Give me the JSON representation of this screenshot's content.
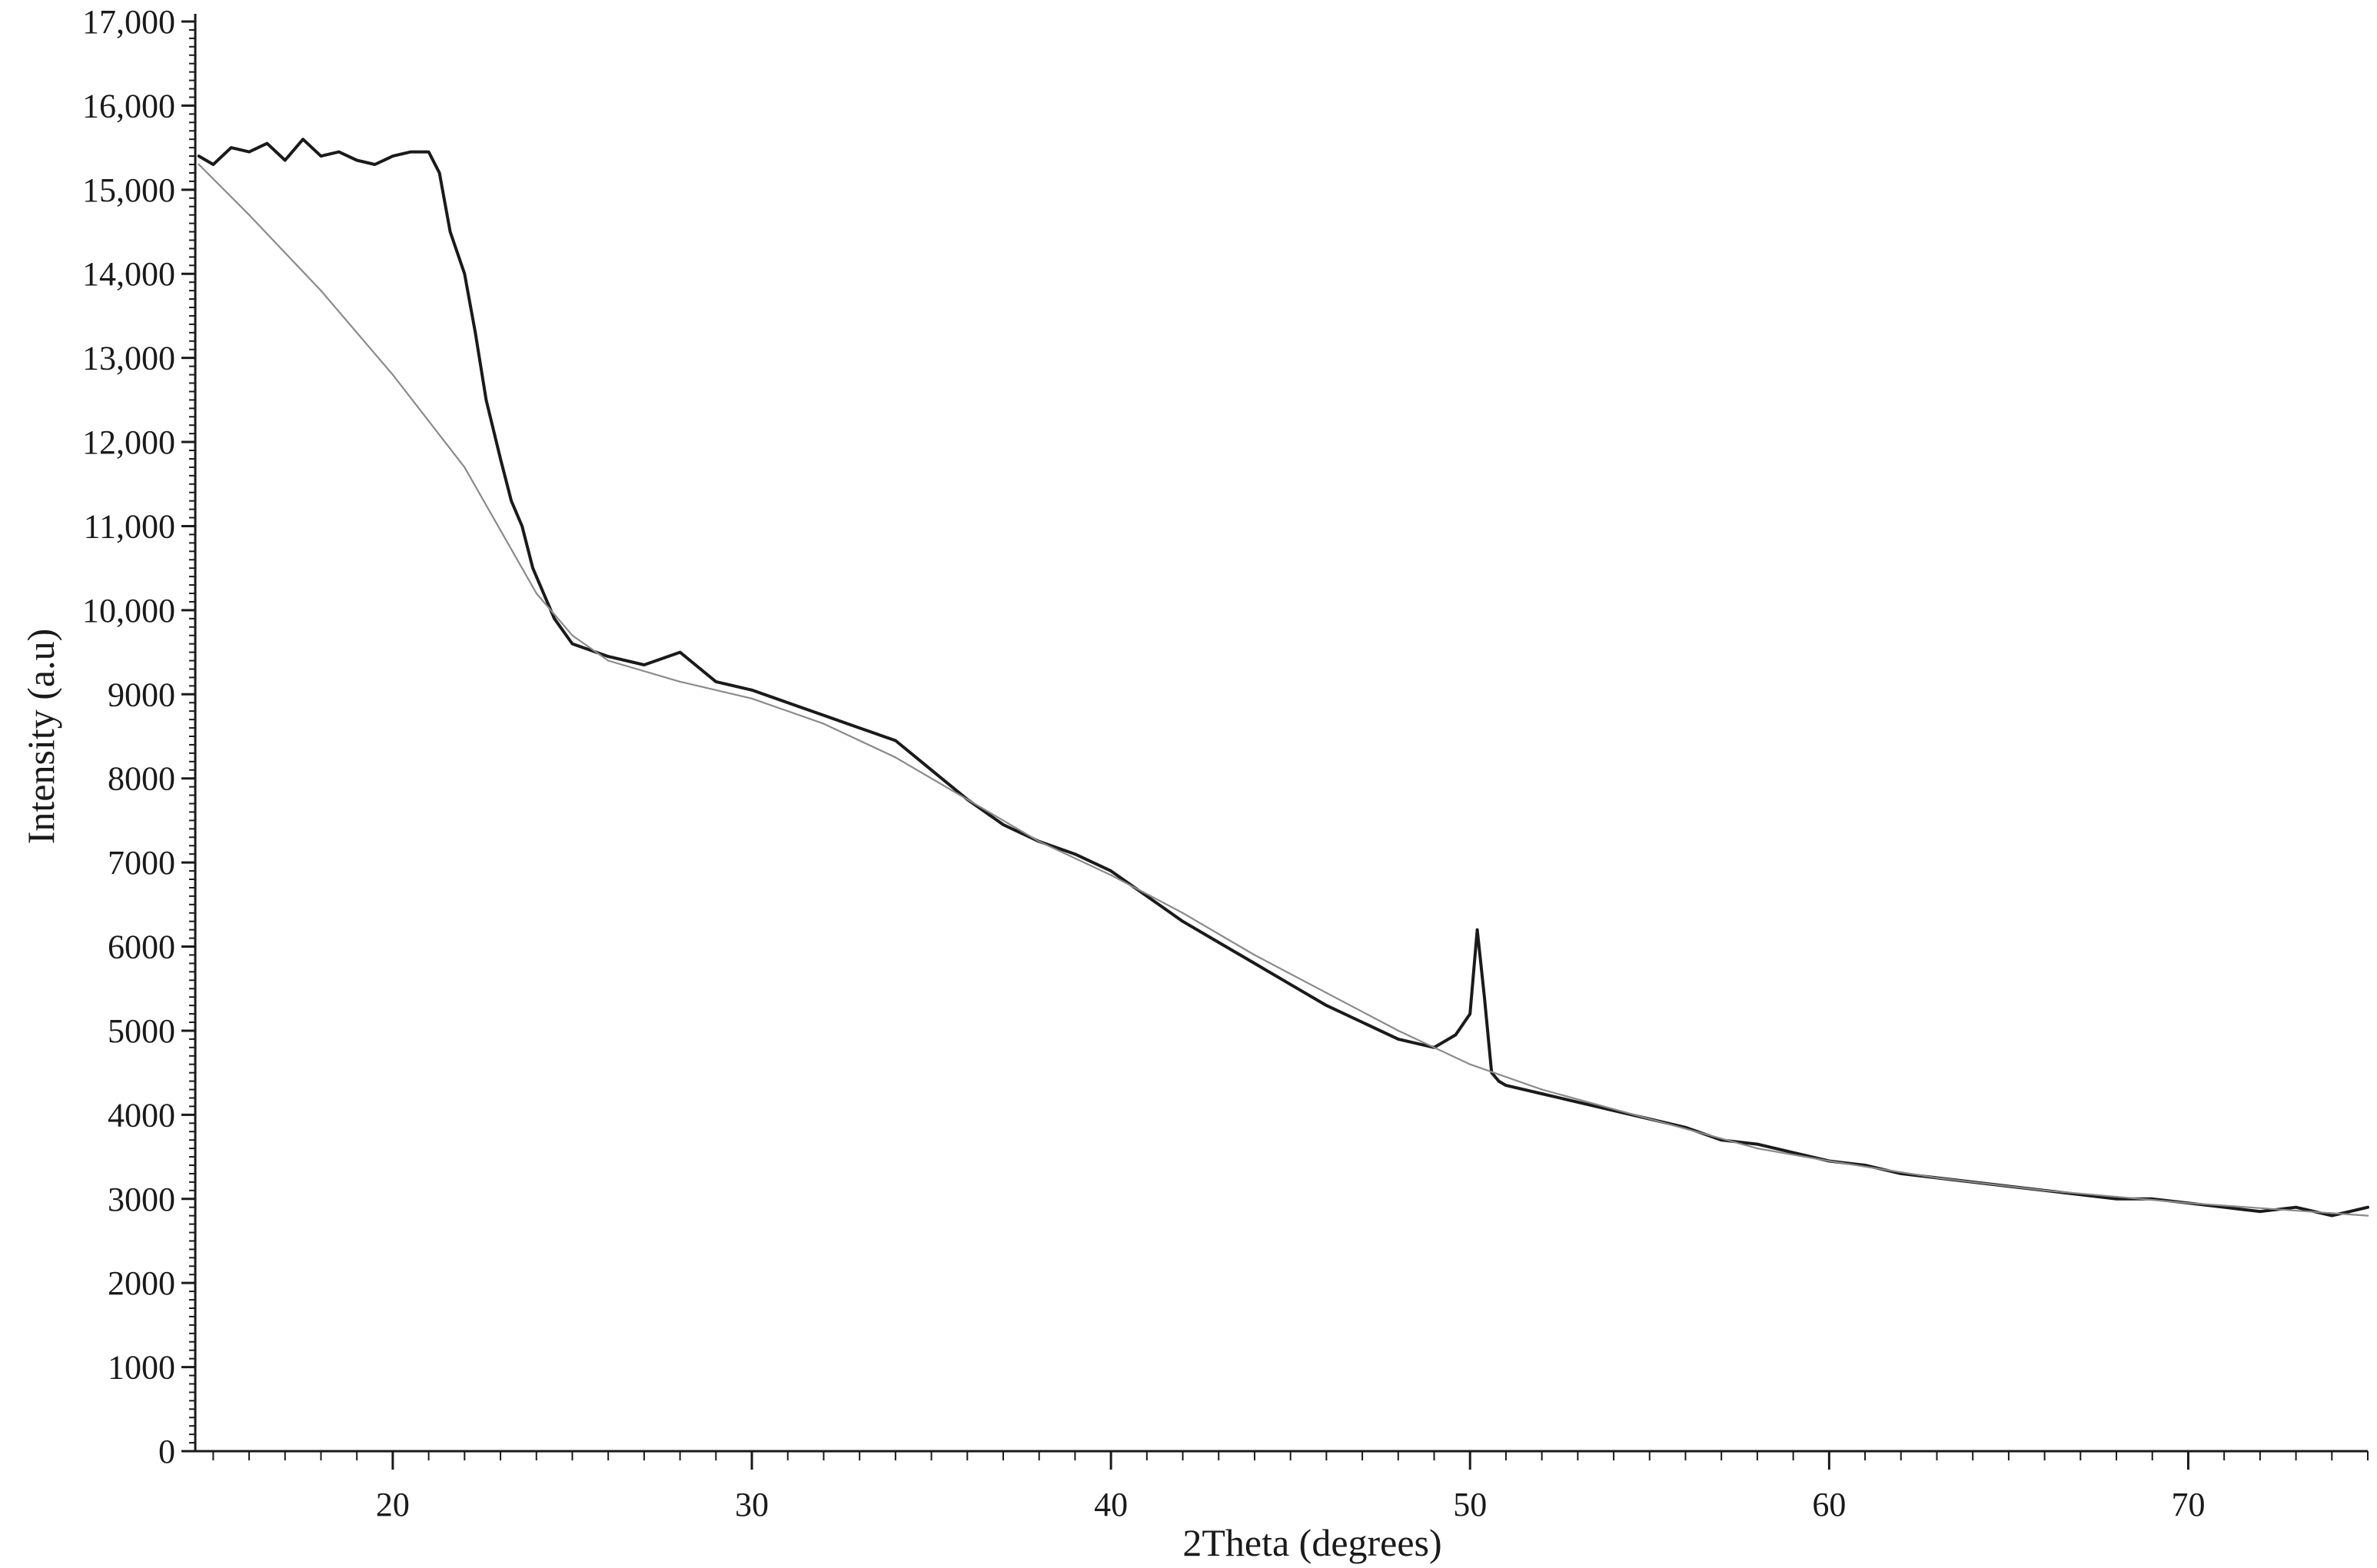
{
  "chart_data": {
    "type": "line",
    "title": "",
    "xlabel": "2Theta (degrees)",
    "ylabel": "Intensity (a.u)",
    "xlim": [
      14.5,
      75
    ],
    "ylim": [
      0,
      17000
    ],
    "grid": false,
    "x_ticks": [
      20,
      30,
      40,
      50,
      60,
      70
    ],
    "x_tick_labels": [
      "20",
      "30",
      "40",
      "50",
      "60",
      "70"
    ],
    "y_ticks": [
      0,
      1000,
      2000,
      3000,
      4000,
      5000,
      6000,
      7000,
      8000,
      9000,
      10000,
      11000,
      12000,
      13000,
      14000,
      15000,
      16000,
      17000
    ],
    "y_tick_labels": [
      "0",
      "1000",
      "2000",
      "3000",
      "4000",
      "5000",
      "6000",
      "7000",
      "8000",
      "9000",
      "10,000",
      "11,000",
      "12,000",
      "13,000",
      "14,000",
      "15,000",
      "16,000",
      "17,000"
    ],
    "colors": {
      "measured": "#1a1a1a",
      "background": "#8a8a8a",
      "axis": "#1a1a1a"
    },
    "series": [
      {
        "key": "measured",
        "x": [
          14.6,
          15.0,
          15.5,
          16.0,
          16.5,
          17.0,
          17.5,
          18.0,
          18.5,
          19.0,
          19.5,
          20.0,
          20.5,
          21.0,
          21.3,
          21.6,
          22.0,
          22.3,
          22.6,
          23.0,
          23.3,
          23.6,
          23.9,
          24.2,
          24.5,
          25.0,
          26.0,
          27.0,
          28.0,
          29.0,
          30.0,
          31.0,
          32.0,
          33.0,
          34.0,
          35.0,
          36.0,
          37.0,
          38.0,
          39.0,
          40.0,
          41.0,
          42.0,
          43.0,
          44.0,
          45.0,
          46.0,
          47.0,
          48.0,
          49.0,
          49.6,
          50.0,
          50.2,
          50.4,
          50.6,
          50.8,
          51.0,
          52.0,
          53.0,
          54.0,
          55.0,
          56.0,
          57.0,
          58.0,
          59.0,
          60.0,
          61.0,
          62.0,
          63.0,
          64.0,
          65.0,
          66.0,
          67.0,
          68.0,
          69.0,
          70.0,
          71.0,
          72.0,
          73.0,
          74.0,
          74.5,
          75.0
        ],
        "y": [
          15400,
          15300,
          15500,
          15450,
          15550,
          15350,
          15600,
          15400,
          15450,
          15350,
          15300,
          15400,
          15450,
          15450,
          15200,
          14500,
          14000,
          13300,
          12500,
          11800,
          11300,
          11000,
          10500,
          10200,
          9900,
          9600,
          9450,
          9350,
          9500,
          9150,
          9050,
          8900,
          8750,
          8600,
          8450,
          8100,
          7750,
          7450,
          7250,
          7100,
          6900,
          6600,
          6300,
          6050,
          5800,
          5550,
          5300,
          5100,
          4900,
          4800,
          4950,
          5200,
          6200,
          5400,
          4500,
          4400,
          4350,
          4250,
          4150,
          4050,
          3950,
          3850,
          3700,
          3650,
          3550,
          3450,
          3400,
          3300,
          3250,
          3200,
          3150,
          3100,
          3050,
          3000,
          3000,
          2950,
          2900,
          2850,
          2900,
          2800,
          2850,
          2900
        ]
      },
      {
        "key": "background",
        "x": [
          14.6,
          16.0,
          18.0,
          20.0,
          22.0,
          24.0,
          25.0,
          26.0,
          28.0,
          30.0,
          32.0,
          34.0,
          36.0,
          38.0,
          40.0,
          42.0,
          44.0,
          46.0,
          48.0,
          50.0,
          52.0,
          55.0,
          58.0,
          60.0,
          63.0,
          66.0,
          70.0,
          75.0
        ],
        "y": [
          15300,
          14700,
          13800,
          12800,
          11700,
          10200,
          9700,
          9400,
          9150,
          8950,
          8650,
          8250,
          7750,
          7250,
          6850,
          6400,
          5900,
          5450,
          5000,
          4600,
          4300,
          3950,
          3600,
          3450,
          3250,
          3100,
          2950,
          2800
        ]
      }
    ]
  }
}
